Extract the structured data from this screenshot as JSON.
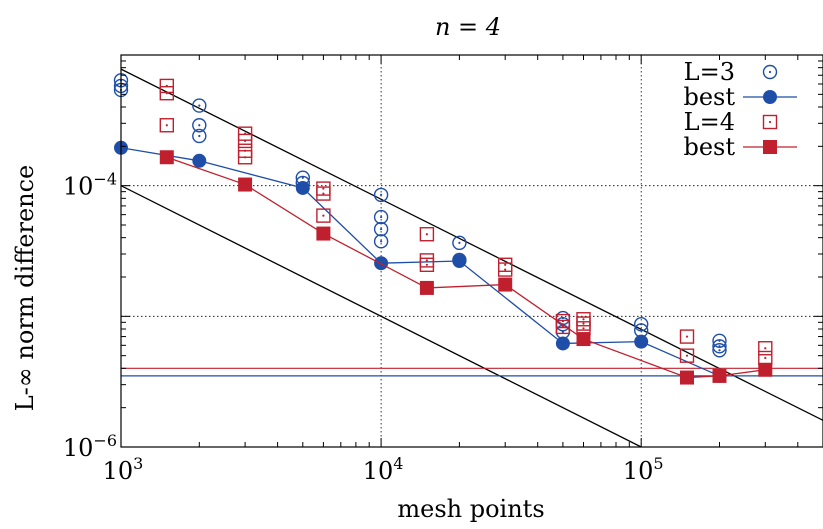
{
  "chart_data": {
    "type": "scatter",
    "title": "n = 4",
    "xlabel": "mesh points",
    "ylabel": "L-∞ norm difference",
    "x_scale": "log",
    "y_scale": "log",
    "xlim": [
      1000,
      500000
    ],
    "ylim": [
      1e-06,
      0.001
    ],
    "x_ticks": [
      {
        "value": 1000,
        "base": "10",
        "exp": "3"
      },
      {
        "value": 10000,
        "base": "10",
        "exp": "4"
      },
      {
        "value": 100000,
        "base": "10",
        "exp": "5"
      }
    ],
    "y_ticks": [
      {
        "value": 1e-06,
        "base": "10",
        "exp": "−6"
      },
      {
        "value": 0.0001,
        "base": "10",
        "exp": "−4"
      }
    ],
    "grid": true,
    "legend_position": "top-right",
    "series": [
      {
        "name": "L=3",
        "kind": "points",
        "marker": "circle-dot",
        "color": "#1f4ea8",
        "x": [
          1000,
          1000,
          1000,
          2000,
          2000,
          2000,
          5000,
          5000,
          10000,
          10000,
          10000,
          10000,
          20000,
          20000,
          50000,
          50000,
          50000,
          100000,
          100000,
          200000,
          200000,
          200000
        ],
        "y": [
          0.00064,
          0.00058,
          0.00054,
          0.00041,
          0.00029,
          0.00024,
          0.000115,
          0.000105,
          8.5e-05,
          5.75e-05,
          4.65e-05,
          3.75e-05,
          3.65e-05,
          2.7e-05,
          9.7e-06,
          8.7e-06,
          7.6e-06,
          8.7e-06,
          7.8e-06,
          6.5e-06,
          5.9e-06,
          5.5e-06
        ]
      },
      {
        "name": "best",
        "kind": "line",
        "marker": "filled-circle",
        "color": "#1f4ea8",
        "x": [
          1000,
          2000,
          5000,
          10000,
          20000,
          50000,
          100000,
          200000
        ],
        "y": [
          0.000195,
          0.000155,
          9.6e-05,
          2.55e-05,
          2.65e-05,
          6.2e-06,
          6.4e-06,
          3.5e-06
        ]
      },
      {
        "name": "L=4",
        "kind": "points",
        "marker": "square-dot",
        "color": "#c0202e",
        "x": [
          1500,
          1500,
          1500,
          3000,
          3000,
          3000,
          3000,
          6000,
          6000,
          6000,
          15000,
          15000,
          15000,
          30000,
          30000,
          50000,
          50000,
          60000,
          60000,
          60000,
          150000,
          150000,
          300000,
          300000
        ],
        "y": [
          0.00058,
          0.00051,
          0.00029,
          0.00025,
          0.00022,
          0.000185,
          0.000165,
          9.5e-05,
          8.7e-05,
          5.9e-05,
          4.25e-05,
          2.68e-05,
          2.48e-05,
          2.48e-05,
          2.28e-05,
          9.2e-06,
          8.3e-06,
          9.5e-06,
          8.8e-06,
          8.1e-06,
          7e-06,
          5e-06,
          5.7e-06,
          4.8e-06
        ]
      },
      {
        "name": "best",
        "kind": "line",
        "marker": "filled-square",
        "color": "#c0202e",
        "x": [
          1500,
          3000,
          6000,
          15000,
          30000,
          60000,
          150000,
          200000,
          300000
        ],
        "y": [
          0.000165,
          0.000102,
          4.3e-05,
          1.65e-05,
          1.75e-05,
          6.7e-06,
          3.4e-06,
          3.5e-06,
          3.9e-06
        ]
      }
    ],
    "reference_lines": [
      {
        "kind": "slope",
        "color": "#000000",
        "points": [
          [
            1000,
            0.00078
          ],
          [
            500000,
            1.6e-06
          ]
        ]
      },
      {
        "kind": "slope",
        "color": "#000000",
        "points": [
          [
            1000,
            0.0001
          ],
          [
            100000,
            1e-06
          ]
        ]
      },
      {
        "kind": "horizontal",
        "color": "#1f4ea8",
        "y": 3.5e-06
      },
      {
        "kind": "horizontal",
        "color": "#c0202e",
        "y": 4e-06
      }
    ]
  }
}
